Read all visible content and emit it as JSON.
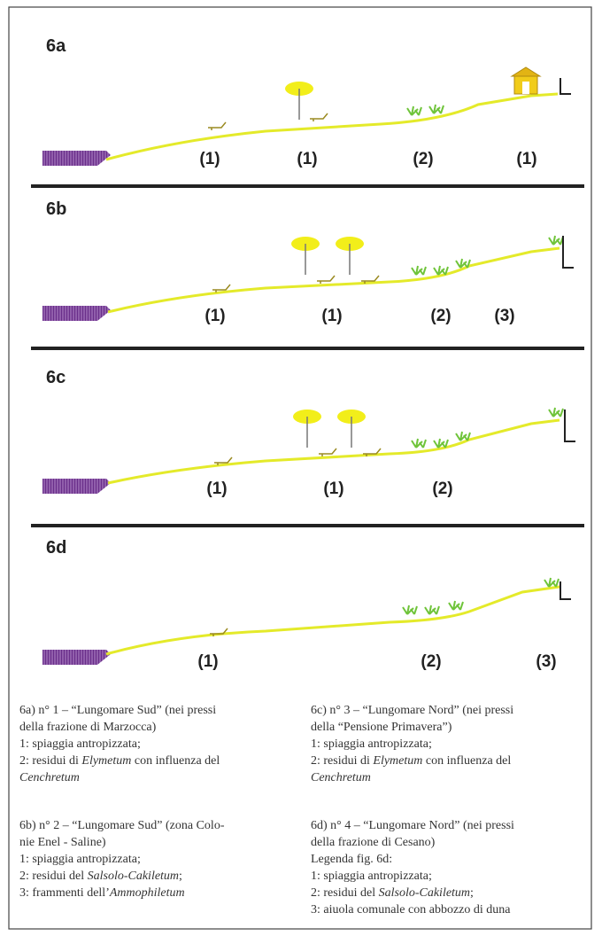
{
  "panels": [
    {
      "label": "6a",
      "zones": [
        "(1)",
        "(1)",
        "(2)",
        "(1)"
      ]
    },
    {
      "label": "6b",
      "zones": [
        "(1)",
        "(1)",
        "(2)",
        "(3)"
      ]
    },
    {
      "label": "6c",
      "zones": [
        "(1)",
        "(1)",
        "(2)"
      ]
    },
    {
      "label": "6d",
      "zones": [
        "(1)",
        "(2)",
        "(3)"
      ]
    }
  ],
  "captions": [
    {
      "lines": [
        [
          {
            "text": "6a) n° 1 – “Lungomare Sud” (nei pressi"
          }
        ],
        [
          {
            "text": "della frazione di Marzocca)"
          }
        ],
        [
          {
            "text": "1: spiaggia antropizzata;"
          }
        ],
        [
          {
            "text": "2: residui di "
          },
          {
            "text": "Elymetum",
            "italic": true
          },
          {
            "text": " con influenza del"
          }
        ],
        [
          {
            "text": "Cenchretum",
            "italic": true
          }
        ]
      ]
    },
    {
      "lines": [
        [
          {
            "text": "6b) n° 2 – “Lungomare Sud” (zona Colo-"
          }
        ],
        [
          {
            "text": "nie Enel - Saline)"
          }
        ],
        [
          {
            "text": "1: spiaggia antropizzata;"
          }
        ],
        [
          {
            "text": "2: residui del "
          },
          {
            "text": "Salsolo-Cakiletum",
            "italic": true
          },
          {
            "text": ";"
          }
        ],
        [
          {
            "text": "3: frammenti dell’"
          },
          {
            "text": "Ammophiletum",
            "italic": true
          }
        ]
      ]
    },
    {
      "lines": [
        [
          {
            "text": "6c) n° 3 – “Lungomare Nord” (nei pressi"
          }
        ],
        [
          {
            "text": "della “Pensione Primavera”)"
          }
        ],
        [
          {
            "text": "1: spiaggia antropizzata;"
          }
        ],
        [
          {
            "text": "2: residui di "
          },
          {
            "text": "Elymetum",
            "italic": true
          },
          {
            "text": " con influenza del"
          }
        ],
        [
          {
            "text": "Cenchretum",
            "italic": true
          }
        ]
      ]
    },
    {
      "lines": [
        [
          {
            "text": "6d) n° 4 – “Lungomare Nord” (nei pressi"
          }
        ],
        [
          {
            "text": "della frazione di Cesano)"
          }
        ],
        [
          {
            "text": "Legenda fig. 6d:"
          }
        ],
        [
          {
            "text": "1: spiaggia antropizzata;"
          }
        ],
        [
          {
            "text": "2: residui del "
          },
          {
            "text": "Salsolo-Cakiletum",
            "italic": true
          },
          {
            "text": ";"
          }
        ],
        [
          {
            "text": "3: aiuola comunale con abbozzo di duna"
          }
        ]
      ]
    }
  ]
}
